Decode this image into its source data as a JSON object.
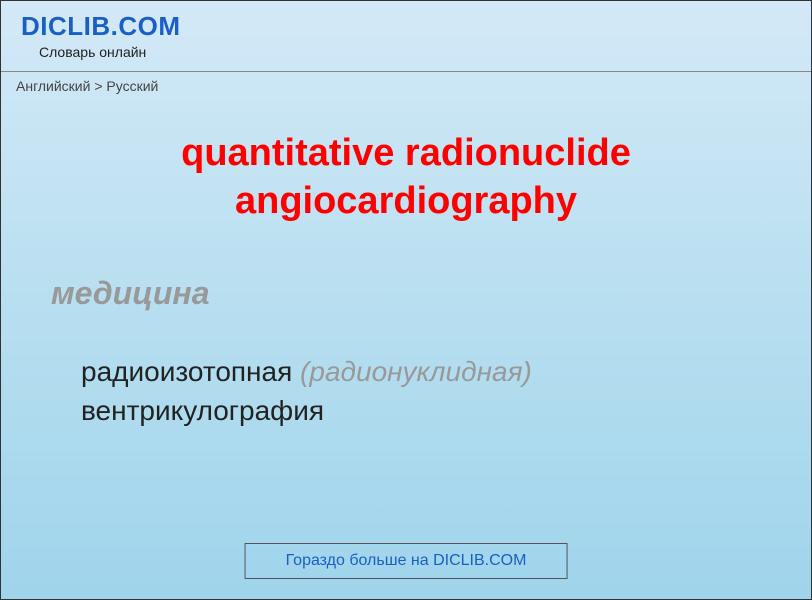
{
  "header": {
    "site_name": "DICLIB.COM",
    "tagline": "Словарь онлайн"
  },
  "breadcrumb": {
    "text": "Английский > Русский"
  },
  "entry": {
    "title": "quantitative radionuclide angiocardiography",
    "subject": "медицина",
    "definition_main1": "радиоизотопная ",
    "definition_paren": "(радионуклидная)",
    "definition_main2": " вентрикулография"
  },
  "footer": {
    "more_label": "Гораздо больше на DICLIB.COM"
  },
  "styling": {
    "background_gradient": [
      "#d4e9f7",
      "#b8dff0",
      "#9fd4eb"
    ],
    "site_name_color": "#1a5fc4",
    "title_color": "#ff0000",
    "title_fontsize": 38,
    "subject_color": "#999999",
    "subject_fontsize": 32,
    "definition_color": "#222222",
    "definition_fontsize": 28,
    "paren_color": "#999999",
    "link_color": "#1a5fc4",
    "border_color": "#333333"
  }
}
